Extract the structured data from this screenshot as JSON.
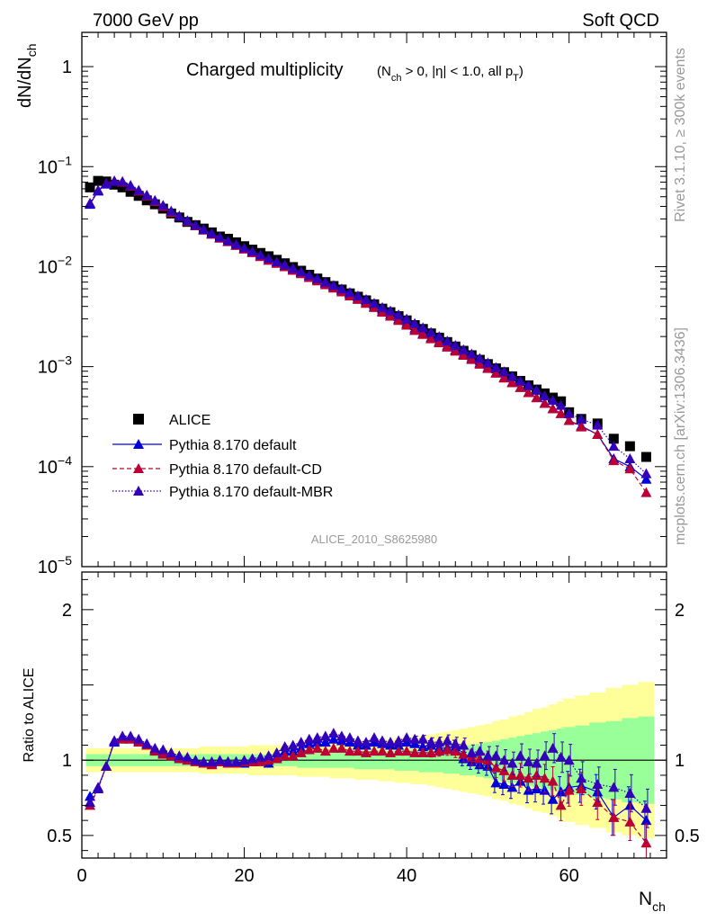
{
  "header": {
    "left": "7000 GeV pp",
    "right": "Soft QCD"
  },
  "side_text": {
    "top": "Rivet 3.1.10, ≥ 300k events",
    "bottom": "mcplots.cern.ch [arXiv:1306.3436]"
  },
  "main": {
    "title_main": "Charged multiplicity",
    "title_sub": "(N_ch > 0, |η| < 1.0, all p_T)",
    "ylabel": "dN/dN_ch",
    "analysis": "ALICE_2010_S8625980",
    "ylim": [
      1e-05,
      2.2
    ],
    "yticks": [
      "1",
      "10^-1",
      "10^-2",
      "10^-3",
      "10^-4",
      "10^-5"
    ]
  },
  "ratio": {
    "ylabel": "Ratio to ALICE",
    "ylim": [
      0.35,
      2.25
    ],
    "yticks": [
      "0.5",
      "1",
      "2"
    ]
  },
  "xaxis": {
    "label": "N_ch",
    "xlim": [
      0,
      72
    ],
    "ticks": [
      "0",
      "20",
      "40",
      "60"
    ]
  },
  "legend": [
    "ALICE",
    "Pythia 8.170 default",
    "Pythia 8.170 default-CD",
    "Pythia 8.170 default-MBR"
  ],
  "colors": {
    "alice": "#000000",
    "default": "#0000dd",
    "cd": "#bb0033",
    "mbr": "#3300bb",
    "band_outer": "#ffff99",
    "band_inner": "#99ff99"
  },
  "chart_data": {
    "type": "scatter",
    "x": [
      1,
      2,
      3,
      4,
      5,
      6,
      7,
      8,
      9,
      10,
      11,
      12,
      13,
      14,
      15,
      16,
      17,
      18,
      19,
      20,
      21,
      22,
      23,
      24,
      25,
      26,
      27,
      28,
      29,
      30,
      31,
      32,
      33,
      34,
      35,
      36,
      37,
      38,
      39,
      40,
      41,
      42,
      43,
      44,
      45,
      46,
      47,
      48,
      49,
      50,
      51,
      52,
      53,
      54,
      55,
      56,
      57,
      58,
      59,
      60,
      61.5,
      63.5,
      65.5,
      67.5,
      69.5
    ],
    "series": [
      {
        "name": "ALICE",
        "values": [
          0.062,
          0.072,
          0.071,
          0.066,
          0.062,
          0.056,
          0.051,
          0.046,
          0.042,
          0.038,
          0.034,
          0.031,
          0.028,
          0.026,
          0.024,
          0.022,
          0.02,
          0.019,
          0.0175,
          0.016,
          0.0148,
          0.0137,
          0.0127,
          0.0117,
          0.0108,
          0.0099,
          0.0091,
          0.0083,
          0.0076,
          0.007,
          0.0064,
          0.0059,
          0.0054,
          0.005,
          0.0046,
          0.0042,
          0.0038,
          0.0035,
          0.0032,
          0.0029,
          0.0026,
          0.00238,
          0.00215,
          0.00195,
          0.00176,
          0.00159,
          0.00144,
          0.0013,
          0.00117,
          0.00106,
          0.00096,
          0.00088,
          0.0008,
          0.00072,
          0.00065,
          0.00059,
          0.00054,
          0.00049,
          0.00045,
          0.00035,
          0.0003,
          0.00027,
          0.00019,
          0.00016,
          0.000125
        ]
      },
      {
        "name": "Pythia 8.170 default",
        "values": [
          0.042,
          0.057,
          0.067,
          0.071,
          0.07,
          0.064,
          0.057,
          0.051,
          0.045,
          0.04,
          0.035,
          0.032,
          0.0286,
          0.0257,
          0.0233,
          0.0212,
          0.0194,
          0.0179,
          0.0164,
          0.0151,
          0.0139,
          0.0127,
          0.0116,
          0.0109,
          0.0102,
          0.0094,
          0.0087,
          0.008,
          0.0074,
          0.0068,
          0.0063,
          0.0058,
          0.0053,
          0.0048,
          0.0044,
          0.004,
          0.0036,
          0.0033,
          0.003,
          0.0027,
          0.0024,
          0.00215,
          0.00195,
          0.00178,
          0.00162,
          0.00147,
          0.00133,
          0.00121,
          0.00109,
          0.00098,
          0.00087,
          0.00078,
          0.0007,
          0.00062,
          0.00055,
          0.00049,
          0.00043,
          0.00038,
          0.00034,
          0.00029,
          0.000255,
          0.00021,
          0.00012,
          0.0001,
          7.5e-05
        ]
      },
      {
        "name": "Pythia 8.170 default-CD",
        "values": [
          0.043,
          0.058,
          0.068,
          0.072,
          0.07,
          0.064,
          0.057,
          0.051,
          0.045,
          0.04,
          0.035,
          0.032,
          0.0285,
          0.0256,
          0.0232,
          0.0211,
          0.0193,
          0.0178,
          0.0163,
          0.015,
          0.0138,
          0.0126,
          0.0116,
          0.0108,
          0.01,
          0.0092,
          0.0085,
          0.0078,
          0.0072,
          0.0066,
          0.0061,
          0.0056,
          0.0051,
          0.0047,
          0.0043,
          0.0039,
          0.0035,
          0.0032,
          0.0029,
          0.0026,
          0.0023,
          0.0021,
          0.0019,
          0.00173,
          0.00157,
          0.00143,
          0.0013,
          0.00118,
          0.00106,
          0.00096,
          0.00086,
          0.00077,
          0.00069,
          0.00062,
          0.00055,
          0.00049,
          0.00043,
          0.00038,
          0.00034,
          0.00029,
          0.00025,
          0.00021,
          0.000115,
          9.5e-05,
          5.5e-05
        ]
      },
      {
        "name": "Pythia 8.170 default-MBR",
        "values": [
          0.043,
          0.058,
          0.068,
          0.072,
          0.071,
          0.065,
          0.058,
          0.052,
          0.046,
          0.041,
          0.036,
          0.032,
          0.0289,
          0.026,
          0.0236,
          0.0215,
          0.0197,
          0.0181,
          0.0167,
          0.0154,
          0.0142,
          0.0131,
          0.0121,
          0.0112,
          0.0104,
          0.0096,
          0.0089,
          0.0082,
          0.0076,
          0.007,
          0.0065,
          0.006,
          0.0055,
          0.0051,
          0.0047,
          0.0043,
          0.0039,
          0.0036,
          0.0033,
          0.003,
          0.0027,
          0.00245,
          0.0022,
          0.002,
          0.0018,
          0.00163,
          0.00148,
          0.00134,
          0.00121,
          0.00109,
          0.00098,
          0.00089,
          0.0008,
          0.00072,
          0.00065,
          0.00058,
          0.00051,
          0.00046,
          0.00041,
          0.00034,
          0.0003,
          0.00026,
          0.00016,
          0.00012,
          8.5e-05
        ]
      }
    ],
    "ratio_series": [
      {
        "name": "Pythia 8.170 default",
        "values": [
          0.76,
          0.82,
          0.96,
          1.12,
          1.15,
          1.15,
          1.13,
          1.1,
          1.07,
          1.05,
          1.03,
          1.02,
          1.01,
          1.0,
          0.98,
          0.98,
          0.99,
          0.99,
          0.99,
          0.98,
          0.99,
          1.0,
          0.98,
          1.02,
          1.06,
          1.06,
          1.08,
          1.11,
          1.12,
          1.12,
          1.14,
          1.13,
          1.12,
          1.1,
          1.1,
          1.12,
          1.11,
          1.1,
          1.1,
          1.12,
          1.11,
          1.09,
          1.1,
          1.08,
          1.08,
          1.09,
          1.01,
          0.99,
          0.97,
          0.96,
          0.85,
          0.84,
          0.82,
          0.86,
          0.8,
          0.81,
          0.8,
          0.74,
          0.79,
          0.82,
          0.83,
          0.79,
          0.62,
          0.7,
          0.6
        ]
      },
      {
        "name": "Pythia 8.170 default-CD",
        "values": [
          0.7,
          0.81,
          0.96,
          1.13,
          1.14,
          1.14,
          1.12,
          1.1,
          1.06,
          1.04,
          1.03,
          1.01,
          1.0,
          0.99,
          0.98,
          0.97,
          0.99,
          0.98,
          0.98,
          0.99,
          0.99,
          0.99,
          1.0,
          1.01,
          1.03,
          1.03,
          1.05,
          1.07,
          1.08,
          1.06,
          1.08,
          1.08,
          1.06,
          1.06,
          1.05,
          1.06,
          1.06,
          1.05,
          1.06,
          1.06,
          1.05,
          1.05,
          1.05,
          1.06,
          1.07,
          1.06,
          1.04,
          1.02,
          1.01,
          1.0,
          0.95,
          0.93,
          0.9,
          0.9,
          0.88,
          0.9,
          0.88,
          0.86,
          0.7,
          0.8,
          0.81,
          0.72,
          0.62,
          0.59,
          0.45
        ]
      },
      {
        "name": "Pythia 8.170 default-MBR",
        "values": [
          0.72,
          0.81,
          0.96,
          1.13,
          1.16,
          1.16,
          1.14,
          1.11,
          1.08,
          1.07,
          1.05,
          1.03,
          1.02,
          1.0,
          0.99,
          0.99,
          1.0,
          0.99,
          0.99,
          1.0,
          1.01,
          1.02,
          1.03,
          1.05,
          1.09,
          1.1,
          1.12,
          1.14,
          1.15,
          1.16,
          1.18,
          1.16,
          1.15,
          1.13,
          1.12,
          1.15,
          1.13,
          1.12,
          1.13,
          1.15,
          1.14,
          1.14,
          1.12,
          1.12,
          1.13,
          1.11,
          1.1,
          1.05,
          1.06,
          1.03,
          1.03,
          1.0,
          0.98,
          1.03,
          0.99,
          0.98,
          1.03,
          1.08,
          1.02,
          1.0,
          0.88,
          0.84,
          0.82,
          0.78,
          0.68
        ]
      }
    ],
    "ratio_band_outer": [
      0.08,
      0.08,
      0.08,
      0.08,
      0.08,
      0.08,
      0.08,
      0.08,
      0.08,
      0.08,
      0.08,
      0.08,
      0.08,
      0.08,
      0.09,
      0.09,
      0.09,
      0.09,
      0.09,
      0.09,
      0.1,
      0.1,
      0.1,
      0.1,
      0.1,
      0.1,
      0.11,
      0.11,
      0.11,
      0.11,
      0.12,
      0.12,
      0.12,
      0.13,
      0.13,
      0.13,
      0.14,
      0.14,
      0.15,
      0.15,
      0.16,
      0.16,
      0.17,
      0.18,
      0.19,
      0.2,
      0.21,
      0.22,
      0.23,
      0.24,
      0.26,
      0.27,
      0.29,
      0.3,
      0.32,
      0.34,
      0.35,
      0.37,
      0.39,
      0.41,
      0.43,
      0.45,
      0.48,
      0.5,
      0.52
    ],
    "ratio_band_inner": [
      0.04,
      0.04,
      0.04,
      0.04,
      0.04,
      0.04,
      0.04,
      0.04,
      0.04,
      0.04,
      0.04,
      0.04,
      0.04,
      0.04,
      0.04,
      0.04,
      0.04,
      0.04,
      0.04,
      0.04,
      0.04,
      0.04,
      0.04,
      0.04,
      0.04,
      0.04,
      0.05,
      0.05,
      0.05,
      0.05,
      0.05,
      0.05,
      0.05,
      0.06,
      0.06,
      0.06,
      0.06,
      0.06,
      0.07,
      0.07,
      0.07,
      0.08,
      0.08,
      0.08,
      0.09,
      0.09,
      0.1,
      0.1,
      0.11,
      0.12,
      0.13,
      0.14,
      0.15,
      0.16,
      0.17,
      0.18,
      0.19,
      0.2,
      0.21,
      0.22,
      0.23,
      0.25,
      0.26,
      0.28,
      0.29
    ]
  }
}
